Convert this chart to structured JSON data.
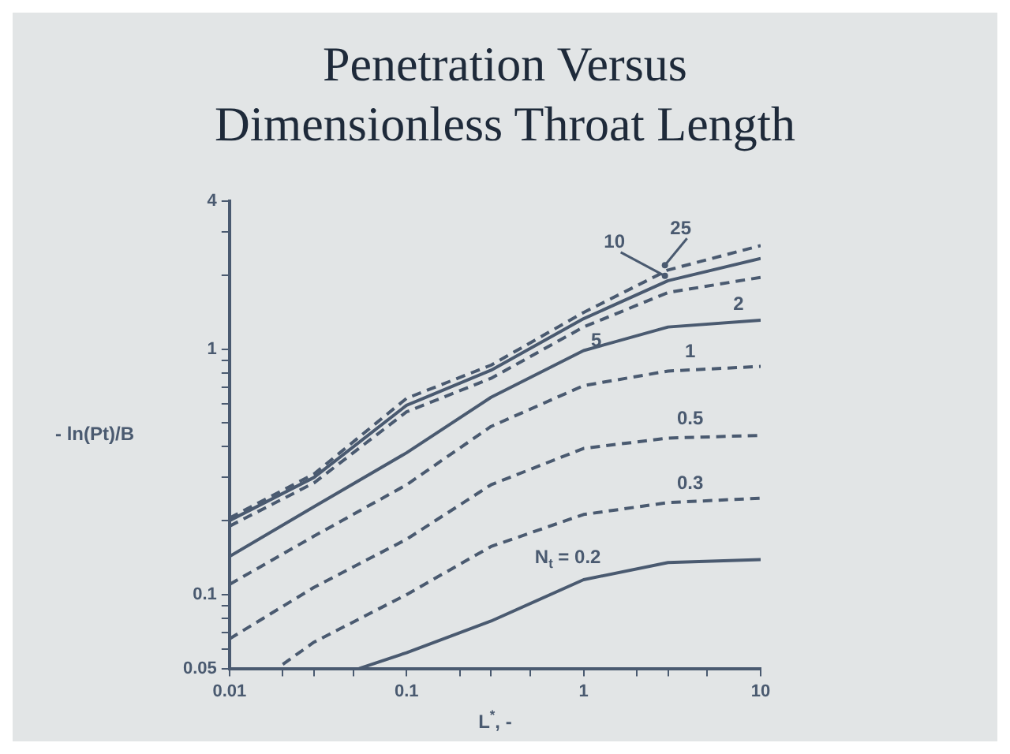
{
  "chart_data": {
    "type": "line",
    "title": "Penetration Versus Dimensionless Throat Length",
    "xlabel": "L$^{*}$, -",
    "ylabel": "- ln(Pt)/B",
    "log": "xy",
    "grid": false,
    "legend": false,
    "marker": "none",
    "xlim": [
      0.01,
      10
    ],
    "ylim": [
      0.05,
      4
    ],
    "xticks": [
      0.01,
      {
        "value": 0.02,
        "label": null
      },
      {
        "value": 0.03,
        "label": null
      },
      {
        "value": 0.05,
        "label": null
      },
      0.1,
      {
        "value": 0.2,
        "label": null
      },
      {
        "value": 0.3,
        "label": null
      },
      {
        "value": 0.5,
        "label": null
      },
      1,
      {
        "value": 2,
        "label": null
      },
      {
        "value": 3,
        "label": null
      },
      {
        "value": 5,
        "label": null
      },
      10
    ],
    "yticks": [
      0.05,
      {
        "value": 0.06,
        "label": null
      },
      {
        "value": 0.07,
        "label": null
      },
      {
        "value": 0.08,
        "label": null
      },
      {
        "value": 0.09,
        "label": null
      },
      0.1,
      {
        "value": 0.2,
        "label": null
      },
      {
        "value": 0.3,
        "label": null
      },
      {
        "value": 0.4,
        "label": null
      },
      {
        "value": 0.5,
        "label": null
      },
      {
        "value": 0.6,
        "label": null
      },
      {
        "value": 0.7,
        "label": null
      },
      {
        "value": 0.8,
        "label": null
      },
      {
        "value": 0.9,
        "label": null
      },
      1,
      {
        "value": 2,
        "label": null
      },
      {
        "value": 3,
        "label": null
      },
      4
    ],
    "x": [
      0.01,
      0.03,
      0.1,
      0.3,
      1,
      3,
      10
    ],
    "series": [
      {
        "name": "25",
        "color": "#4a5a70",
        "line_style": "dashed",
        "values": [
          0.205,
          0.31,
          0.63,
          0.86,
          1.41,
          2.1,
          2.64
        ]
      },
      {
        "name": "10",
        "color": "#4a5a70",
        "line_style": "solid",
        "values": [
          0.2,
          0.3,
          0.59,
          0.82,
          1.33,
          1.9,
          2.34
        ]
      },
      {
        "name": "5",
        "color": "#4a5a70",
        "line_style": "dashed",
        "values": [
          0.19,
          0.285,
          0.555,
          0.76,
          1.23,
          1.7,
          1.96
        ]
      },
      {
        "name": "2",
        "color": "#4a5a70",
        "line_style": "solid",
        "values": [
          0.143,
          0.228,
          0.378,
          0.636,
          0.986,
          1.23,
          1.31
        ]
      },
      {
        "name": "1",
        "color": "#4a5a70",
        "line_style": "dashed",
        "values": [
          0.11,
          0.173,
          0.28,
          0.484,
          0.71,
          0.814,
          0.85
        ]
      },
      {
        "name": "0.5",
        "color": "#4a5a70",
        "line_style": "dashed",
        "values": [
          0.066,
          0.107,
          0.168,
          0.28,
          0.394,
          0.434,
          0.445
        ]
      },
      {
        "name": "0.3",
        "color": "#4a5a70",
        "line_style": "dashed",
        "x": [
          0.02,
          0.03,
          0.1,
          0.3,
          1,
          3,
          10
        ],
        "values": [
          0.052,
          0.064,
          0.1,
          0.157,
          0.212,
          0.237,
          0.247
        ]
      },
      {
        "name": "N$_{t}$ = 0.2",
        "color": "#4a5a70",
        "line_style": "solid",
        "x": [
          0.054,
          0.1,
          0.3,
          1,
          3,
          10
        ],
        "values": [
          0.05,
          0.058,
          0.078,
          0.115,
          0.135,
          0.139
        ]
      }
    ]
  }
}
